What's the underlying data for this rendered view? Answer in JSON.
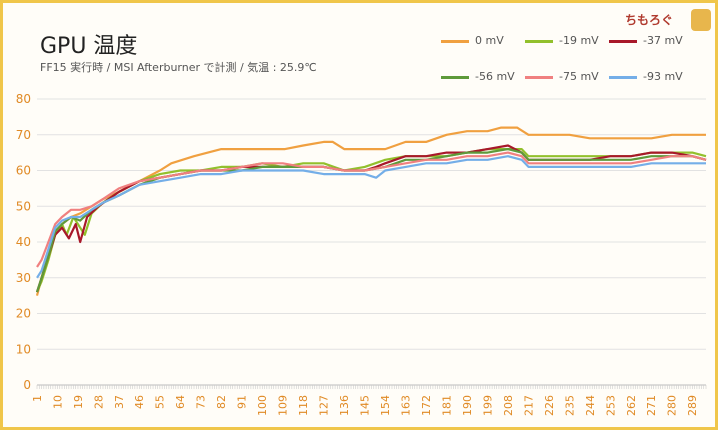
{
  "title": "GPU 温度",
  "subtitle": "FF15 実行時 / MSI Afterburner で計測 / 気温 : 25.9℃",
  "logo": {
    "text": "ちもろぐ",
    "icon": "cat-icon"
  },
  "colors": {
    "frame": "#f0c64a",
    "axis_text": "#e08a25",
    "grid": "#e2e2e2"
  },
  "chart_data": {
    "type": "line",
    "title": "GPU 温度",
    "subtitle": "FF15 実行時 / MSI Afterburner で計測 / 気温 : 25.9℃",
    "xlabel": "",
    "ylabel": "",
    "ylim": [
      0,
      80
    ],
    "yticks": [
      "0",
      "10",
      "20",
      "30",
      "40",
      "50",
      "60",
      "70",
      "80"
    ],
    "xlim": [
      1,
      295
    ],
    "xticks": [
      "1",
      "10",
      "19",
      "28",
      "37",
      "46",
      "55",
      "64",
      "73",
      "82",
      "91",
      "100",
      "109",
      "118",
      "127",
      "136",
      "145",
      "154",
      "163",
      "172",
      "181",
      "190",
      "199",
      "208",
      "217",
      "226",
      "235",
      "244",
      "253",
      "262",
      "271",
      "280",
      "289"
    ],
    "grid": "horizontal",
    "legend_position": "top-right",
    "series": [
      {
        "name": "0 mV",
        "color": "#f0a040",
        "points": [
          [
            1,
            25
          ],
          [
            3,
            30
          ],
          [
            6,
            37
          ],
          [
            9,
            42
          ],
          [
            12,
            45
          ],
          [
            16,
            47
          ],
          [
            20,
            48
          ],
          [
            25,
            50
          ],
          [
            30,
            52
          ],
          [
            37,
            54
          ],
          [
            46,
            57
          ],
          [
            55,
            60
          ],
          [
            60,
            62
          ],
          [
            70,
            64
          ],
          [
            82,
            66
          ],
          [
            91,
            66
          ],
          [
            100,
            66
          ],
          [
            110,
            66
          ],
          [
            118,
            67
          ],
          [
            127,
            68
          ],
          [
            131,
            68
          ],
          [
            136,
            66
          ],
          [
            145,
            66
          ],
          [
            150,
            66
          ],
          [
            154,
            66
          ],
          [
            163,
            68
          ],
          [
            172,
            68
          ],
          [
            181,
            70
          ],
          [
            190,
            71
          ],
          [
            199,
            71
          ],
          [
            205,
            72
          ],
          [
            212,
            72
          ],
          [
            217,
            70
          ],
          [
            226,
            70
          ],
          [
            235,
            70
          ],
          [
            244,
            69
          ],
          [
            253,
            69
          ],
          [
            262,
            69
          ],
          [
            271,
            69
          ],
          [
            280,
            70
          ],
          [
            289,
            70
          ],
          [
            295,
            70
          ]
        ]
      },
      {
        "name": "-19 mV",
        "color": "#92c02c",
        "points": [
          [
            1,
            26
          ],
          [
            3,
            29
          ],
          [
            6,
            35
          ],
          [
            9,
            42
          ],
          [
            12,
            45
          ],
          [
            14,
            42
          ],
          [
            17,
            47
          ],
          [
            20,
            44
          ],
          [
            22,
            42
          ],
          [
            25,
            48
          ],
          [
            30,
            51
          ],
          [
            37,
            54
          ],
          [
            46,
            57
          ],
          [
            55,
            59
          ],
          [
            64,
            60
          ],
          [
            73,
            60
          ],
          [
            82,
            61
          ],
          [
            91,
            61
          ],
          [
            100,
            62
          ],
          [
            109,
            61
          ],
          [
            118,
            62
          ],
          [
            127,
            62
          ],
          [
            136,
            60
          ],
          [
            145,
            61
          ],
          [
            154,
            63
          ],
          [
            163,
            64
          ],
          [
            172,
            64
          ],
          [
            181,
            64
          ],
          [
            190,
            65
          ],
          [
            199,
            66
          ],
          [
            208,
            66
          ],
          [
            214,
            66
          ],
          [
            217,
            64
          ],
          [
            226,
            64
          ],
          [
            235,
            64
          ],
          [
            244,
            64
          ],
          [
            253,
            64
          ],
          [
            262,
            64
          ],
          [
            271,
            65
          ],
          [
            280,
            65
          ],
          [
            289,
            65
          ],
          [
            295,
            64
          ]
        ]
      },
      {
        "name": "-37 mV",
        "color": "#a8182a",
        "points": [
          [
            1,
            26
          ],
          [
            3,
            30
          ],
          [
            6,
            36
          ],
          [
            9,
            42
          ],
          [
            12,
            44
          ],
          [
            15,
            41
          ],
          [
            18,
            45
          ],
          [
            20,
            40
          ],
          [
            23,
            47
          ],
          [
            28,
            50
          ],
          [
            37,
            54
          ],
          [
            46,
            57
          ],
          [
            55,
            58
          ],
          [
            64,
            59
          ],
          [
            73,
            60
          ],
          [
            82,
            60
          ],
          [
            91,
            61
          ],
          [
            100,
            61
          ],
          [
            109,
            61
          ],
          [
            118,
            61
          ],
          [
            127,
            61
          ],
          [
            136,
            60
          ],
          [
            145,
            60
          ],
          [
            150,
            61
          ],
          [
            154,
            62
          ],
          [
            163,
            64
          ],
          [
            172,
            64
          ],
          [
            181,
            65
          ],
          [
            190,
            65
          ],
          [
            199,
            66
          ],
          [
            208,
            67
          ],
          [
            214,
            65
          ],
          [
            217,
            63
          ],
          [
            226,
            63
          ],
          [
            235,
            63
          ],
          [
            244,
            63
          ],
          [
            253,
            64
          ],
          [
            262,
            64
          ],
          [
            271,
            65
          ],
          [
            280,
            65
          ],
          [
            289,
            64
          ],
          [
            295,
            63
          ]
        ]
      },
      {
        "name": "-56 mV",
        "color": "#5e9a3a",
        "points": [
          [
            1,
            26
          ],
          [
            3,
            30
          ],
          [
            6,
            36
          ],
          [
            9,
            43
          ],
          [
            12,
            45
          ],
          [
            16,
            47
          ],
          [
            20,
            46
          ],
          [
            25,
            49
          ],
          [
            30,
            51
          ],
          [
            37,
            53
          ],
          [
            46,
            56
          ],
          [
            55,
            58
          ],
          [
            64,
            59
          ],
          [
            73,
            60
          ],
          [
            82,
            60
          ],
          [
            91,
            60
          ],
          [
            100,
            61
          ],
          [
            109,
            61
          ],
          [
            118,
            61
          ],
          [
            127,
            61
          ],
          [
            136,
            60
          ],
          [
            145,
            60
          ],
          [
            154,
            61
          ],
          [
            163,
            63
          ],
          [
            172,
            63
          ],
          [
            181,
            64
          ],
          [
            190,
            65
          ],
          [
            199,
            65
          ],
          [
            208,
            66
          ],
          [
            214,
            65
          ],
          [
            217,
            63
          ],
          [
            226,
            63
          ],
          [
            235,
            63
          ],
          [
            244,
            63
          ],
          [
            253,
            63
          ],
          [
            262,
            63
          ],
          [
            271,
            64
          ],
          [
            280,
            64
          ],
          [
            289,
            64
          ],
          [
            295,
            63
          ]
        ]
      },
      {
        "name": "-75 mV",
        "color": "#f08080",
        "points": [
          [
            1,
            33
          ],
          [
            3,
            35
          ],
          [
            6,
            40
          ],
          [
            9,
            45
          ],
          [
            12,
            47
          ],
          [
            16,
            49
          ],
          [
            20,
            49
          ],
          [
            25,
            50
          ],
          [
            30,
            52
          ],
          [
            37,
            55
          ],
          [
            46,
            57
          ],
          [
            55,
            58
          ],
          [
            64,
            59
          ],
          [
            73,
            60
          ],
          [
            82,
            60
          ],
          [
            91,
            61
          ],
          [
            100,
            62
          ],
          [
            109,
            62
          ],
          [
            118,
            61
          ],
          [
            127,
            61
          ],
          [
            136,
            60
          ],
          [
            145,
            60
          ],
          [
            154,
            61
          ],
          [
            163,
            62
          ],
          [
            172,
            63
          ],
          [
            181,
            63
          ],
          [
            190,
            64
          ],
          [
            199,
            64
          ],
          [
            208,
            65
          ],
          [
            214,
            64
          ],
          [
            217,
            62
          ],
          [
            226,
            62
          ],
          [
            235,
            62
          ],
          [
            244,
            62
          ],
          [
            253,
            62
          ],
          [
            262,
            62
          ],
          [
            271,
            63
          ],
          [
            280,
            64
          ],
          [
            289,
            64
          ],
          [
            295,
            63
          ]
        ]
      },
      {
        "name": "-93 mV",
        "color": "#74aee8",
        "points": [
          [
            1,
            30
          ],
          [
            3,
            32
          ],
          [
            6,
            38
          ],
          [
            9,
            44
          ],
          [
            12,
            46
          ],
          [
            16,
            47
          ],
          [
            20,
            47
          ],
          [
            25,
            49
          ],
          [
            30,
            51
          ],
          [
            37,
            53
          ],
          [
            46,
            56
          ],
          [
            55,
            57
          ],
          [
            64,
            58
          ],
          [
            73,
            59
          ],
          [
            82,
            59
          ],
          [
            91,
            60
          ],
          [
            100,
            60
          ],
          [
            109,
            60
          ],
          [
            118,
            60
          ],
          [
            127,
            59
          ],
          [
            136,
            59
          ],
          [
            145,
            59
          ],
          [
            150,
            58
          ],
          [
            154,
            60
          ],
          [
            163,
            61
          ],
          [
            172,
            62
          ],
          [
            181,
            62
          ],
          [
            190,
            63
          ],
          [
            199,
            63
          ],
          [
            208,
            64
          ],
          [
            214,
            63
          ],
          [
            217,
            61
          ],
          [
            226,
            61
          ],
          [
            235,
            61
          ],
          [
            244,
            61
          ],
          [
            253,
            61
          ],
          [
            262,
            61
          ],
          [
            271,
            62
          ],
          [
            280,
            62
          ],
          [
            289,
            62
          ],
          [
            295,
            62
          ]
        ]
      }
    ]
  }
}
